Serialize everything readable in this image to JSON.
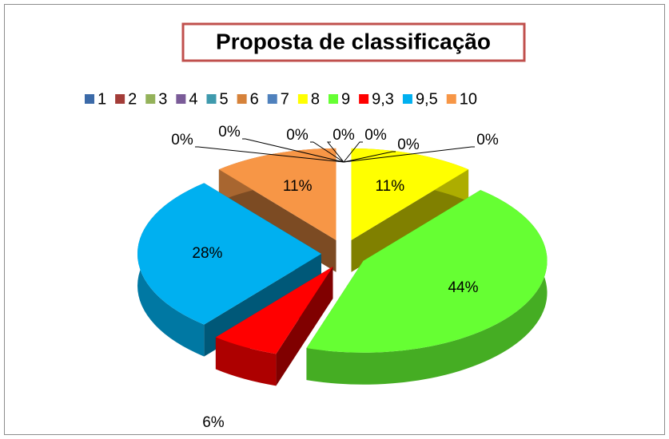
{
  "chart_data": {
    "type": "pie3d",
    "title": "Proposta de classificação",
    "categories": [
      "1",
      "2",
      "3",
      "4",
      "5",
      "6",
      "7",
      "8",
      "9",
      "9,3",
      "9,5",
      "10"
    ],
    "values": [
      0,
      0,
      0,
      0,
      0,
      0,
      0,
      11,
      44,
      6,
      28,
      11
    ],
    "value_labels": [
      "0%",
      "0%",
      "0%",
      "0%",
      "0%",
      "0%",
      "0%",
      "11%",
      "44%",
      "6%",
      "28%",
      "11%"
    ],
    "colors": [
      "#3b6aa8",
      "#a33c38",
      "#94b25a",
      "#7a5b98",
      "#3f9aad",
      "#d6823a",
      "#4f81bd",
      "#ffff00",
      "#66ff33",
      "#ff0000",
      "#00b0f0",
      "#f79646"
    ],
    "legend": "top"
  }
}
